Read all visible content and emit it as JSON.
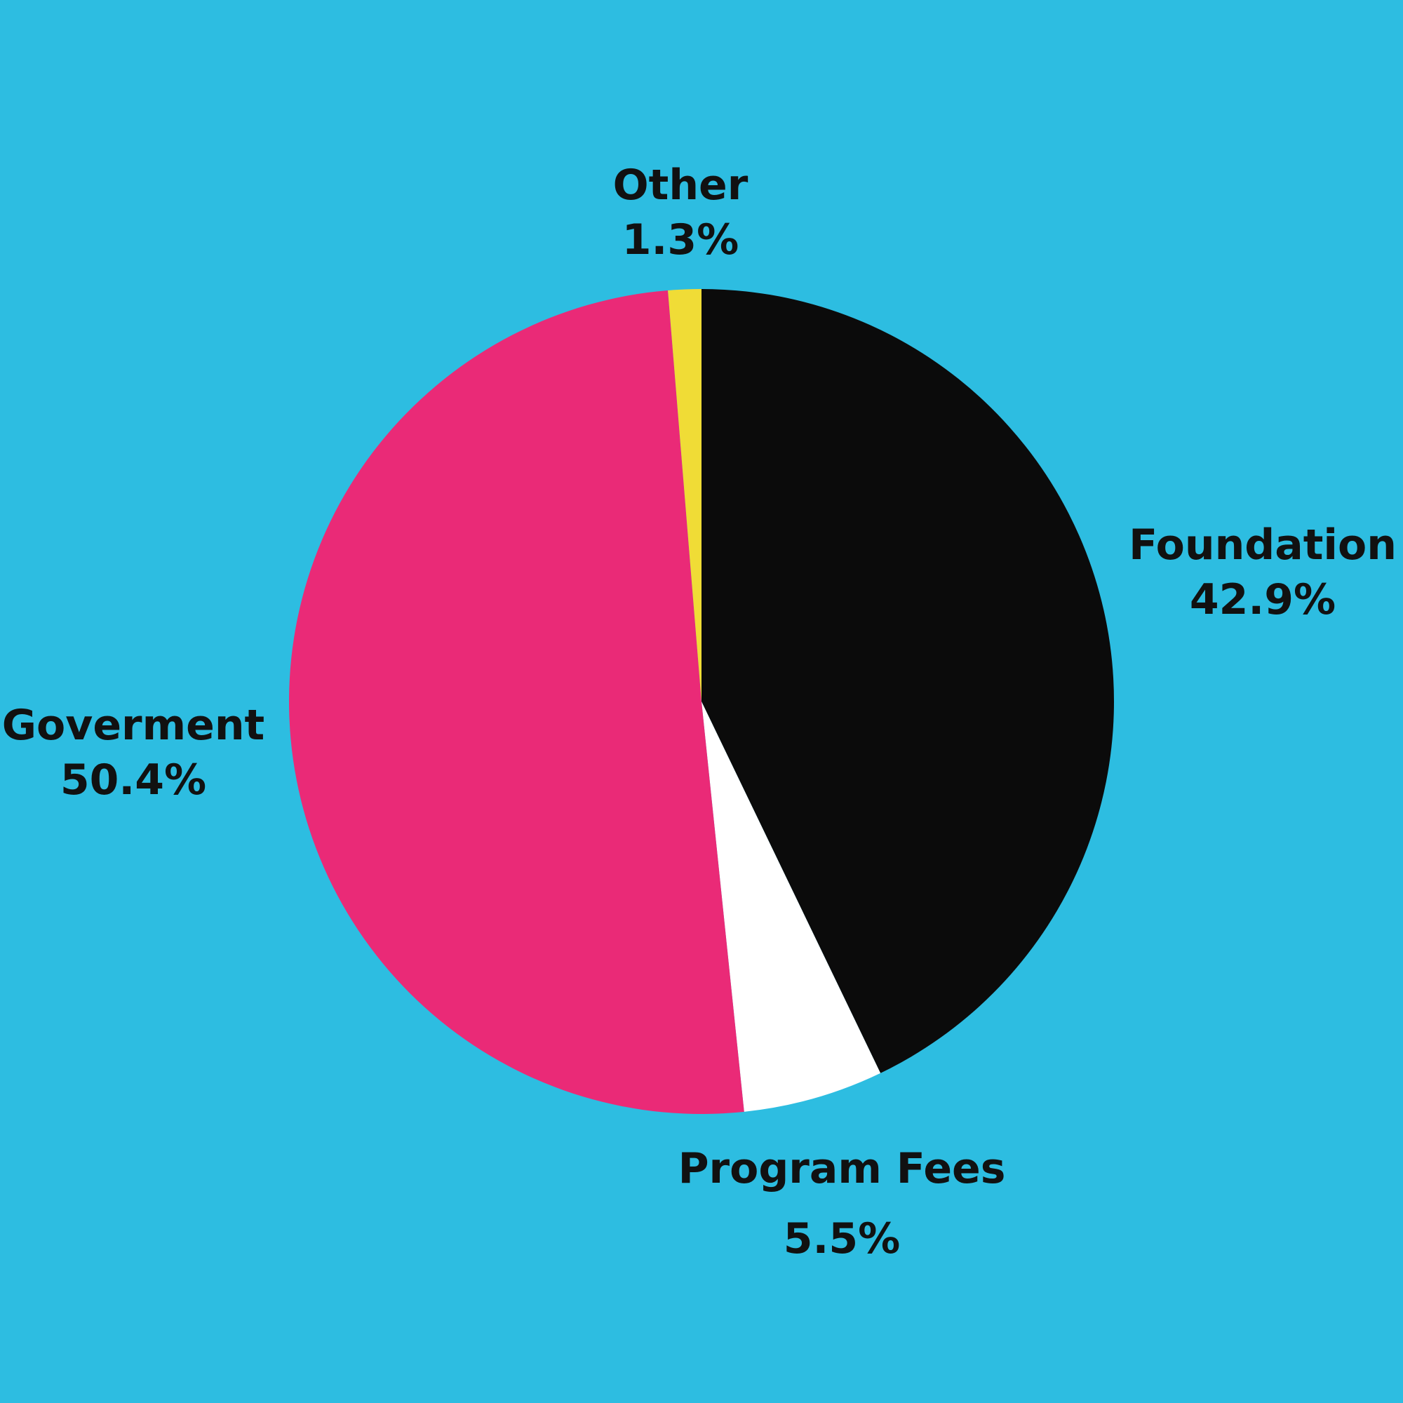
{
  "background": "#2dbde1",
  "chart_data": {
    "type": "pie",
    "start_angle_deg": 0,
    "direction": "clockwise",
    "slices": [
      {
        "label": "Foundation",
        "value": 42.9,
        "display": "42.9%",
        "color": "#0b0b0b"
      },
      {
        "label": "Program Fees",
        "value": 5.5,
        "display": "5.5%",
        "color": "#ffffff"
      },
      {
        "label": "Goverment",
        "value": 50.4,
        "display": "50.4%",
        "color": "#ea2a77"
      },
      {
        "label": "Other",
        "value": 1.3,
        "display": "1.3%",
        "color": "#f0dc36"
      }
    ]
  }
}
